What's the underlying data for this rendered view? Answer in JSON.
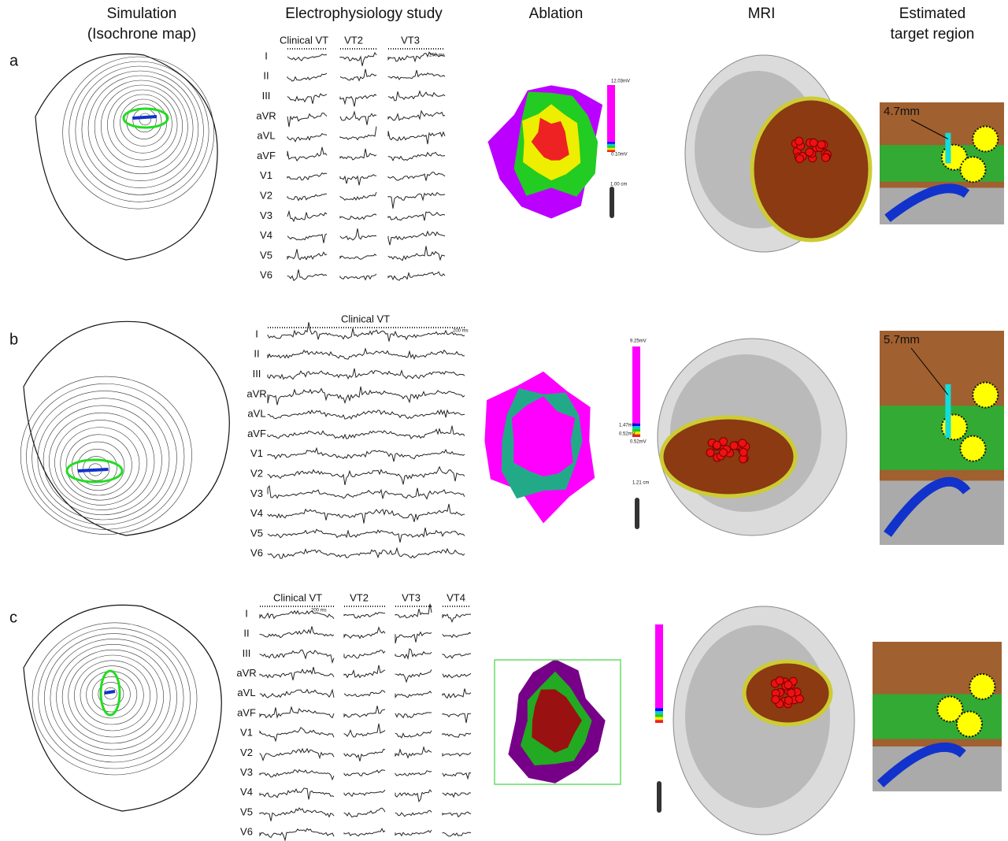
{
  "columns": [
    {
      "lines": [
        "Simulation",
        "(Isochrone map)"
      ]
    },
    {
      "lines": [
        "Electrophysiology study"
      ]
    },
    {
      "lines": [
        "Ablation"
      ]
    },
    {
      "lines": [
        "MRI"
      ]
    },
    {
      "lines": [
        "Estimated",
        "target region"
      ]
    }
  ],
  "rows": [
    {
      "label": "a",
      "ep": {
        "traces": [
          "Clinical VT",
          "VT2",
          "VT3"
        ],
        "scale": "200 ms",
        "leads": [
          "I",
          "II",
          "III",
          "aVR",
          "aVL",
          "aVF",
          "V1",
          "V2",
          "V3",
          "V4",
          "V5",
          "V6"
        ]
      },
      "ablation": {
        "scale": [
          "12.03mV",
          "0.10mV",
          "1.00 cm"
        ]
      },
      "target": {
        "distance": "4.7mm"
      }
    },
    {
      "label": "b",
      "ep": {
        "traces": [
          "Clinical VT"
        ],
        "scale": "200 ms",
        "leads": [
          "I",
          "II",
          "III",
          "aVR",
          "aVL",
          "aVF",
          "V1",
          "V2",
          "V3",
          "V4",
          "V5",
          "V6"
        ]
      },
      "ablation": {
        "scale": [
          "9.25mV",
          "1.47mV",
          "0.52mV",
          "0.52mV",
          "1.21 cm"
        ]
      },
      "target": {
        "distance": "5.7mm"
      }
    },
    {
      "label": "c",
      "ep": {
        "traces": [
          "Clinical VT",
          "VT2",
          "VT3",
          "VT4"
        ],
        "scale": "200 ms",
        "leads": [
          "I",
          "II",
          "III",
          "aVR",
          "aVL",
          "aVF",
          "V1",
          "V2",
          "V3",
          "V4",
          "V5",
          "V6"
        ]
      }
    }
  ]
}
